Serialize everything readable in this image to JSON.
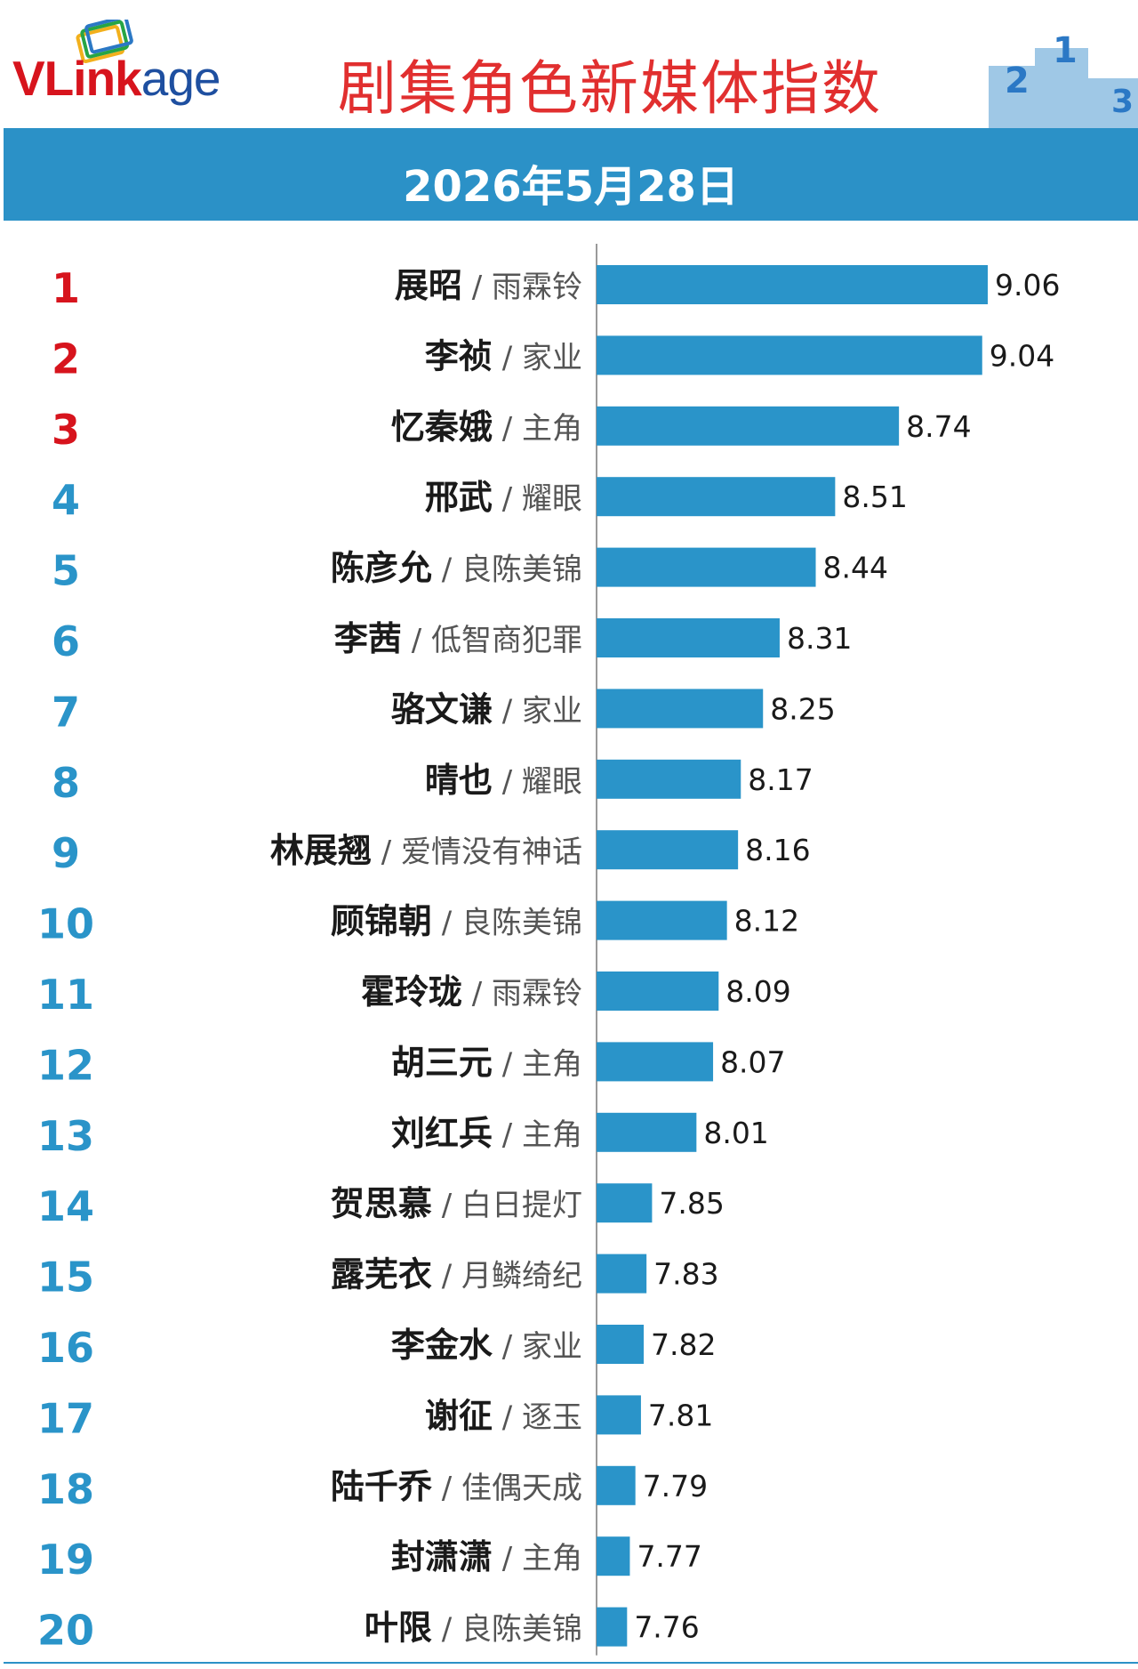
{
  "header": {
    "logo_text_v": "VL",
    "logo_text_ink": "ink",
    "logo_text_age": "age",
    "title": "剧集角色新媒体指数",
    "podium_numbers": [
      "2",
      "1",
      "3"
    ]
  },
  "date": "2026年5月28日",
  "colors": {
    "bar": "#2a94c9",
    "rank_top": "#d7141d",
    "rank_rest": "#2a94c9",
    "title": "#e12f2f",
    "date_bar": "#2b91c7"
  },
  "chart_data": {
    "type": "bar",
    "orientation": "horizontal",
    "separator": "/",
    "ranks": [
      1,
      2,
      3,
      4,
      5,
      6,
      7,
      8,
      9,
      10,
      11,
      12,
      13,
      14,
      15,
      16,
      17,
      18,
      19,
      20
    ],
    "categories": [
      {
        "role": "展昭",
        "drama": "雨霖铃"
      },
      {
        "role": "李祯",
        "drama": "家业"
      },
      {
        "role": "忆秦娥",
        "drama": "主角"
      },
      {
        "role": "邢武",
        "drama": "耀眼"
      },
      {
        "role": "陈彦允",
        "drama": "良陈美锦"
      },
      {
        "role": "李茜",
        "drama": "低智商犯罪"
      },
      {
        "role": "骆文谦",
        "drama": "家业"
      },
      {
        "role": "晴也",
        "drama": "耀眼"
      },
      {
        "role": "林展翘",
        "drama": "爱情没有神话"
      },
      {
        "role": "顾锦朝",
        "drama": "良陈美锦"
      },
      {
        "role": "霍玲珑",
        "drama": "雨霖铃"
      },
      {
        "role": "胡三元",
        "drama": "主角"
      },
      {
        "role": "刘红兵",
        "drama": "主角"
      },
      {
        "role": "贺思慕",
        "drama": "白日提灯"
      },
      {
        "role": "露芜衣",
        "drama": "月鳞绮纪"
      },
      {
        "role": "李金水",
        "drama": "家业"
      },
      {
        "role": "谢征",
        "drama": "逐玉"
      },
      {
        "role": "陆千乔",
        "drama": "佳偶天成"
      },
      {
        "role": "封潇潇",
        "drama": "主角"
      },
      {
        "role": "叶限",
        "drama": "良陈美锦"
      }
    ],
    "values": [
      9.06,
      9.04,
      8.74,
      8.51,
      8.44,
      8.31,
      8.25,
      8.17,
      8.16,
      8.12,
      8.09,
      8.07,
      8.01,
      7.85,
      7.83,
      7.82,
      7.81,
      7.79,
      7.77,
      7.76
    ],
    "xlim": [
      7.65,
      9.06
    ],
    "grid": false,
    "legend": "none"
  }
}
